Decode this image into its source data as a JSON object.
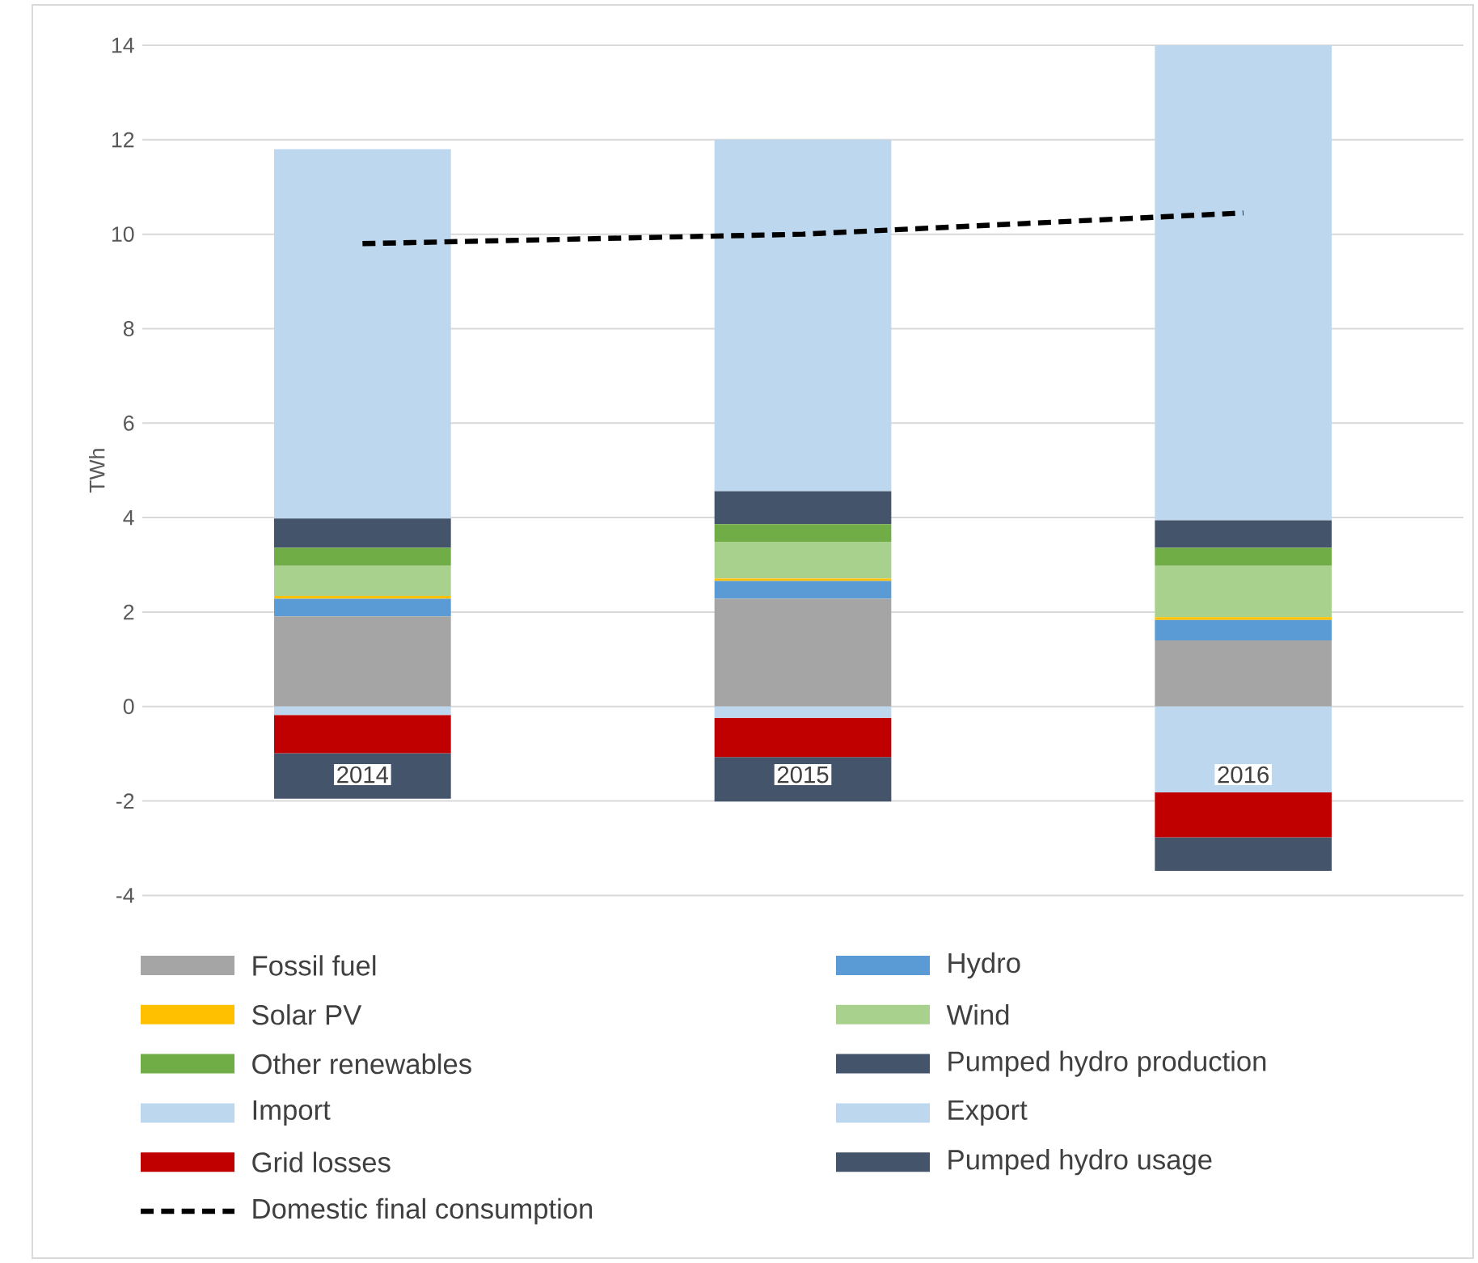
{
  "chart_data": {
    "type": "bar",
    "stacked": true,
    "ylabel": "TWh",
    "categories": [
      "2014",
      "2015",
      "2016"
    ],
    "ylim": [
      -4,
      14
    ],
    "yticks": [
      -4,
      -2,
      0,
      2,
      4,
      6,
      8,
      10,
      12,
      14
    ],
    "grid": "y",
    "legend": "bottom",
    "series": [
      {
        "name": "Fossil fuel",
        "color": "#a5a5a5",
        "values": [
          1.91,
          2.28,
          1.4
        ]
      },
      {
        "name": "Hydro",
        "color": "#5b9bd5",
        "values": [
          0.37,
          0.38,
          0.43
        ]
      },
      {
        "name": "Solar PV",
        "color": "#ffc000",
        "values": [
          0.06,
          0.05,
          0.06
        ]
      },
      {
        "name": "Wind",
        "color": "#a9d18e",
        "values": [
          0.64,
          0.78,
          1.09
        ]
      },
      {
        "name": "Other renewables",
        "color": "#70ad47",
        "values": [
          0.38,
          0.37,
          0.38
        ]
      },
      {
        "name": "Pumped hydro production",
        "color": "#44546a",
        "values": [
          0.62,
          0.7,
          0.58
        ]
      },
      {
        "name": "Import",
        "color": "#bdd7ee",
        "values": [
          7.82,
          7.44,
          10.06
        ]
      },
      {
        "name": "Export",
        "color": "#bdd7ee",
        "values": [
          -0.18,
          -0.24,
          -1.82
        ]
      },
      {
        "name": "Grid losses",
        "color": "#c00000",
        "values": [
          -0.81,
          -0.83,
          -0.95
        ]
      },
      {
        "name": "Pumped hydro usage",
        "color": "#44546a",
        "values": [
          -0.96,
          -0.94,
          -0.71
        ]
      },
      {
        "name": "Domestic final consumption",
        "type": "line",
        "line_style": "dashed",
        "color": "#000000",
        "values": [
          9.8,
          10.0,
          10.45
        ]
      }
    ]
  }
}
